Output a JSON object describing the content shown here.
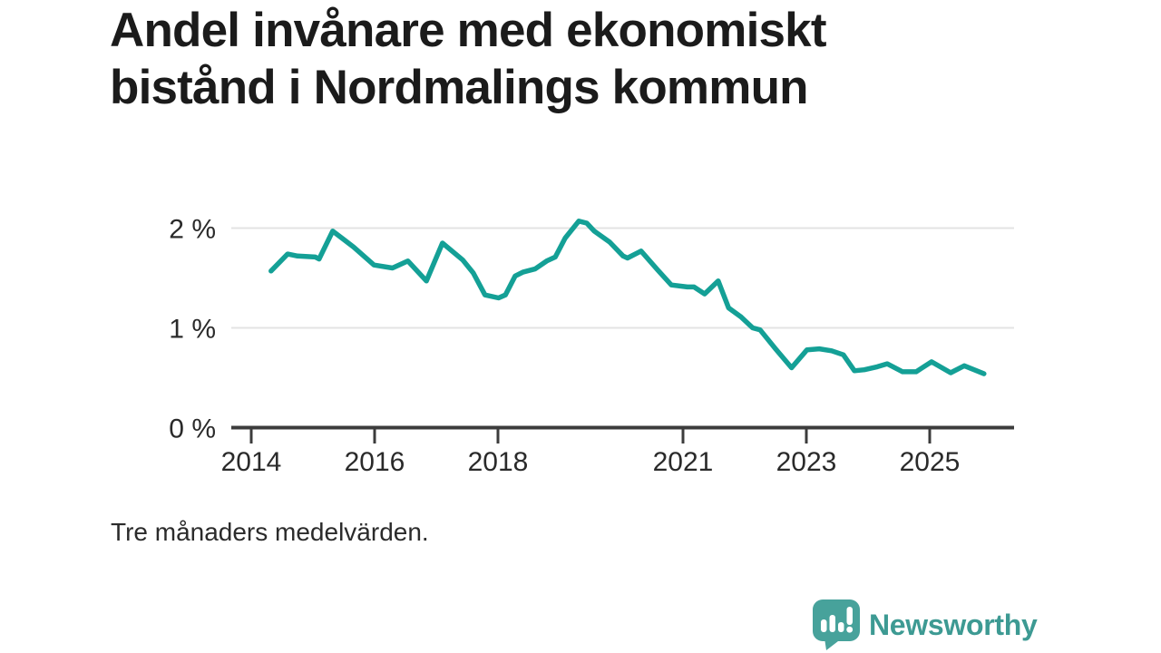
{
  "header": {
    "title_line1": "Andel invånare med ekonomiskt",
    "title_line2": "bistånd i Nordmalings kommun"
  },
  "footer": {
    "note": "Tre månaders medelvärden."
  },
  "brand": {
    "name": "Newsworthy",
    "icon": "newsworthy-chart-bubble-icon",
    "text_color": "#3d9a93",
    "bubble_color": "#47a29b"
  },
  "chart_data": {
    "type": "line",
    "title": "Andel invånare med ekonomiskt bistånd i Nordmalings kommun",
    "note": "Tre månaders medelvärden.",
    "xlabel": "",
    "ylabel": "",
    "y_unit": "percent",
    "xlim": [
      2013.7,
      2026.4
    ],
    "ylim": [
      0,
      2.3
    ],
    "grid": "horizontal",
    "legend": "none",
    "line_color": "#14a096",
    "grid_color": "#e3e3e3",
    "axis_color": "#3c3c3c",
    "xticks": [
      {
        "value": 2014,
        "label": "2014"
      },
      {
        "value": 2016,
        "label": "2016"
      },
      {
        "value": 2018,
        "label": "2018"
      },
      {
        "value": 2021,
        "label": "2021"
      },
      {
        "value": 2023,
        "label": "2023"
      },
      {
        "value": 2025,
        "label": "2025"
      }
    ],
    "yticks": [
      {
        "value": 0,
        "label": "0 %"
      },
      {
        "value": 1,
        "label": "1 %"
      },
      {
        "value": 2,
        "label": "2 %"
      }
    ],
    "series": [
      {
        "name": "Andel invånare med ekonomiskt bistånd",
        "x": [
          2014.32,
          2014.59,
          2014.75,
          2015.04,
          2015.1,
          2015.32,
          2015.66,
          2015.99,
          2016.29,
          2016.54,
          2016.84,
          2017.1,
          2017.43,
          2017.6,
          2017.79,
          2018.01,
          2018.12,
          2018.28,
          2018.41,
          2018.6,
          2018.79,
          2018.93,
          2019.09,
          2019.31,
          2019.44,
          2019.56,
          2019.81,
          2020.03,
          2020.1,
          2020.32,
          2020.59,
          2020.81,
          2021.07,
          2021.18,
          2021.35,
          2021.57,
          2021.74,
          2021.94,
          2022.13,
          2022.25,
          2022.5,
          2022.76,
          2023.01,
          2023.21,
          2023.41,
          2023.6,
          2023.78,
          2023.94,
          2024.15,
          2024.31,
          2024.56,
          2024.78,
          2025.03,
          2025.34,
          2025.56,
          2025.88
        ],
        "y": [
          1.57,
          1.74,
          1.72,
          1.71,
          1.69,
          1.97,
          1.81,
          1.63,
          1.6,
          1.67,
          1.47,
          1.85,
          1.68,
          1.55,
          1.33,
          1.3,
          1.33,
          1.52,
          1.56,
          1.59,
          1.67,
          1.71,
          1.9,
          2.07,
          2.05,
          1.97,
          1.86,
          1.72,
          1.7,
          1.77,
          1.58,
          1.43,
          1.41,
          1.41,
          1.34,
          1.47,
          1.2,
          1.11,
          1.0,
          0.98,
          0.79,
          0.6,
          0.78,
          0.79,
          0.77,
          0.73,
          0.57,
          0.58,
          0.61,
          0.64,
          0.56,
          0.56,
          0.66,
          0.55,
          0.62,
          0.54
        ]
      }
    ]
  }
}
